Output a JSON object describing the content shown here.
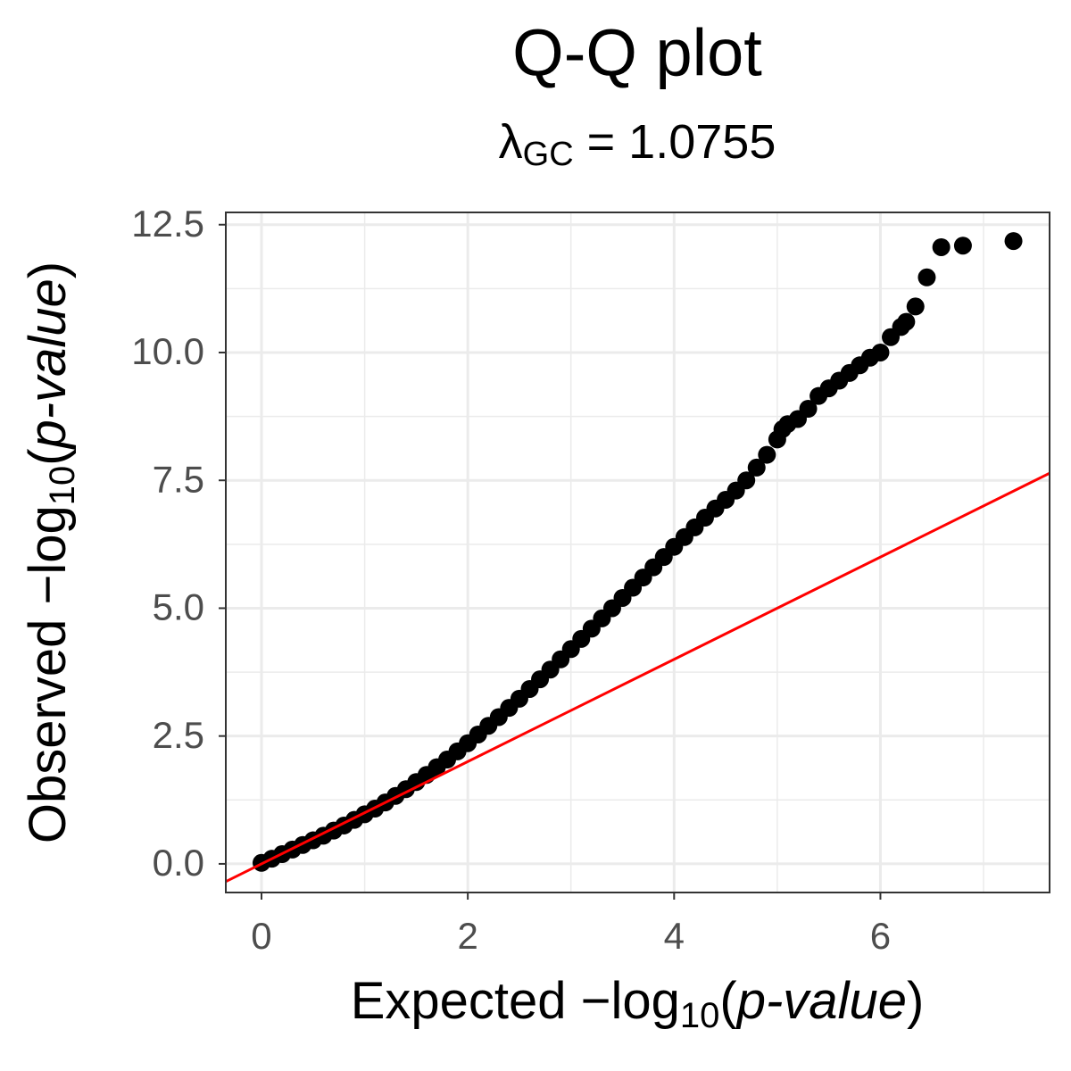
{
  "chart_data": {
    "type": "scatter",
    "title": "Q-Q plot",
    "subtitle": {
      "symbol": "λ",
      "subscript": "GC",
      "text": " = 1.0755"
    },
    "x_label": {
      "prefix": "Expected −log",
      "subscript": "10",
      "open": "(",
      "argument": "p-value",
      "close": ")"
    },
    "y_label": {
      "prefix": "Observed −log",
      "subscript": "10",
      "open": "(",
      "argument": "p-value",
      "close": ")"
    },
    "xlim": [
      -0.346,
      7.64
    ],
    "ylim": [
      -0.56,
      12.74
    ],
    "xticks": [
      0,
      2,
      4,
      6
    ],
    "yticks": [
      {
        "value": 0,
        "label": "0.0"
      },
      {
        "value": 2.5,
        "label": "2.5"
      },
      {
        "value": 5,
        "label": "5.0"
      },
      {
        "value": 7.5,
        "label": "7.5"
      },
      {
        "value": 10,
        "label": "10.0"
      },
      {
        "value": 12.5,
        "label": "12.5"
      }
    ],
    "grid": true,
    "reference_line": {
      "intercept": 0,
      "slope": 1,
      "color": "#ff0000"
    },
    "series": [
      {
        "color": "#000000",
        "x": [
          0,
          0.1,
          0.2,
          0.3,
          0.4,
          0.5,
          0.6,
          0.7,
          0.8,
          0.9,
          1.0,
          1.1,
          1.2,
          1.3,
          1.4,
          1.5,
          1.6,
          1.7,
          1.8,
          1.9,
          2.0,
          2.1,
          2.2,
          2.3,
          2.4,
          2.5,
          2.6,
          2.7,
          2.8,
          2.9,
          3.0,
          3.1,
          3.2,
          3.3,
          3.4,
          3.5,
          3.6,
          3.7,
          3.8,
          3.9,
          4.0,
          4.1,
          4.2,
          4.3,
          4.4,
          4.5,
          4.6,
          4.7,
          4.8,
          4.9,
          5.0,
          5.05,
          5.1,
          5.2,
          5.3,
          5.4,
          5.5,
          5.6,
          5.7,
          5.8,
          5.9,
          6.0,
          6.1,
          6.2,
          6.25,
          6.34,
          6.45,
          6.59,
          6.8,
          7.29
        ],
        "values": [
          0.02,
          0.1,
          0.19,
          0.28,
          0.37,
          0.46,
          0.55,
          0.65,
          0.75,
          0.86,
          0.97,
          1.08,
          1.2,
          1.33,
          1.46,
          1.6,
          1.74,
          1.89,
          2.04,
          2.2,
          2.36,
          2.53,
          2.7,
          2.87,
          3.05,
          3.23,
          3.42,
          3.61,
          3.8,
          4.0,
          4.2,
          4.4,
          4.6,
          4.8,
          5.0,
          5.2,
          5.4,
          5.6,
          5.8,
          6.0,
          6.2,
          6.39,
          6.58,
          6.77,
          6.95,
          7.12,
          7.3,
          7.5,
          7.75,
          8.0,
          8.3,
          8.5,
          8.6,
          8.7,
          8.9,
          9.15,
          9.3,
          9.45,
          9.6,
          9.75,
          9.9,
          10.0,
          10.3,
          10.5,
          10.6,
          10.9,
          11.47,
          12.06,
          12.09,
          12.18
        ]
      }
    ]
  }
}
